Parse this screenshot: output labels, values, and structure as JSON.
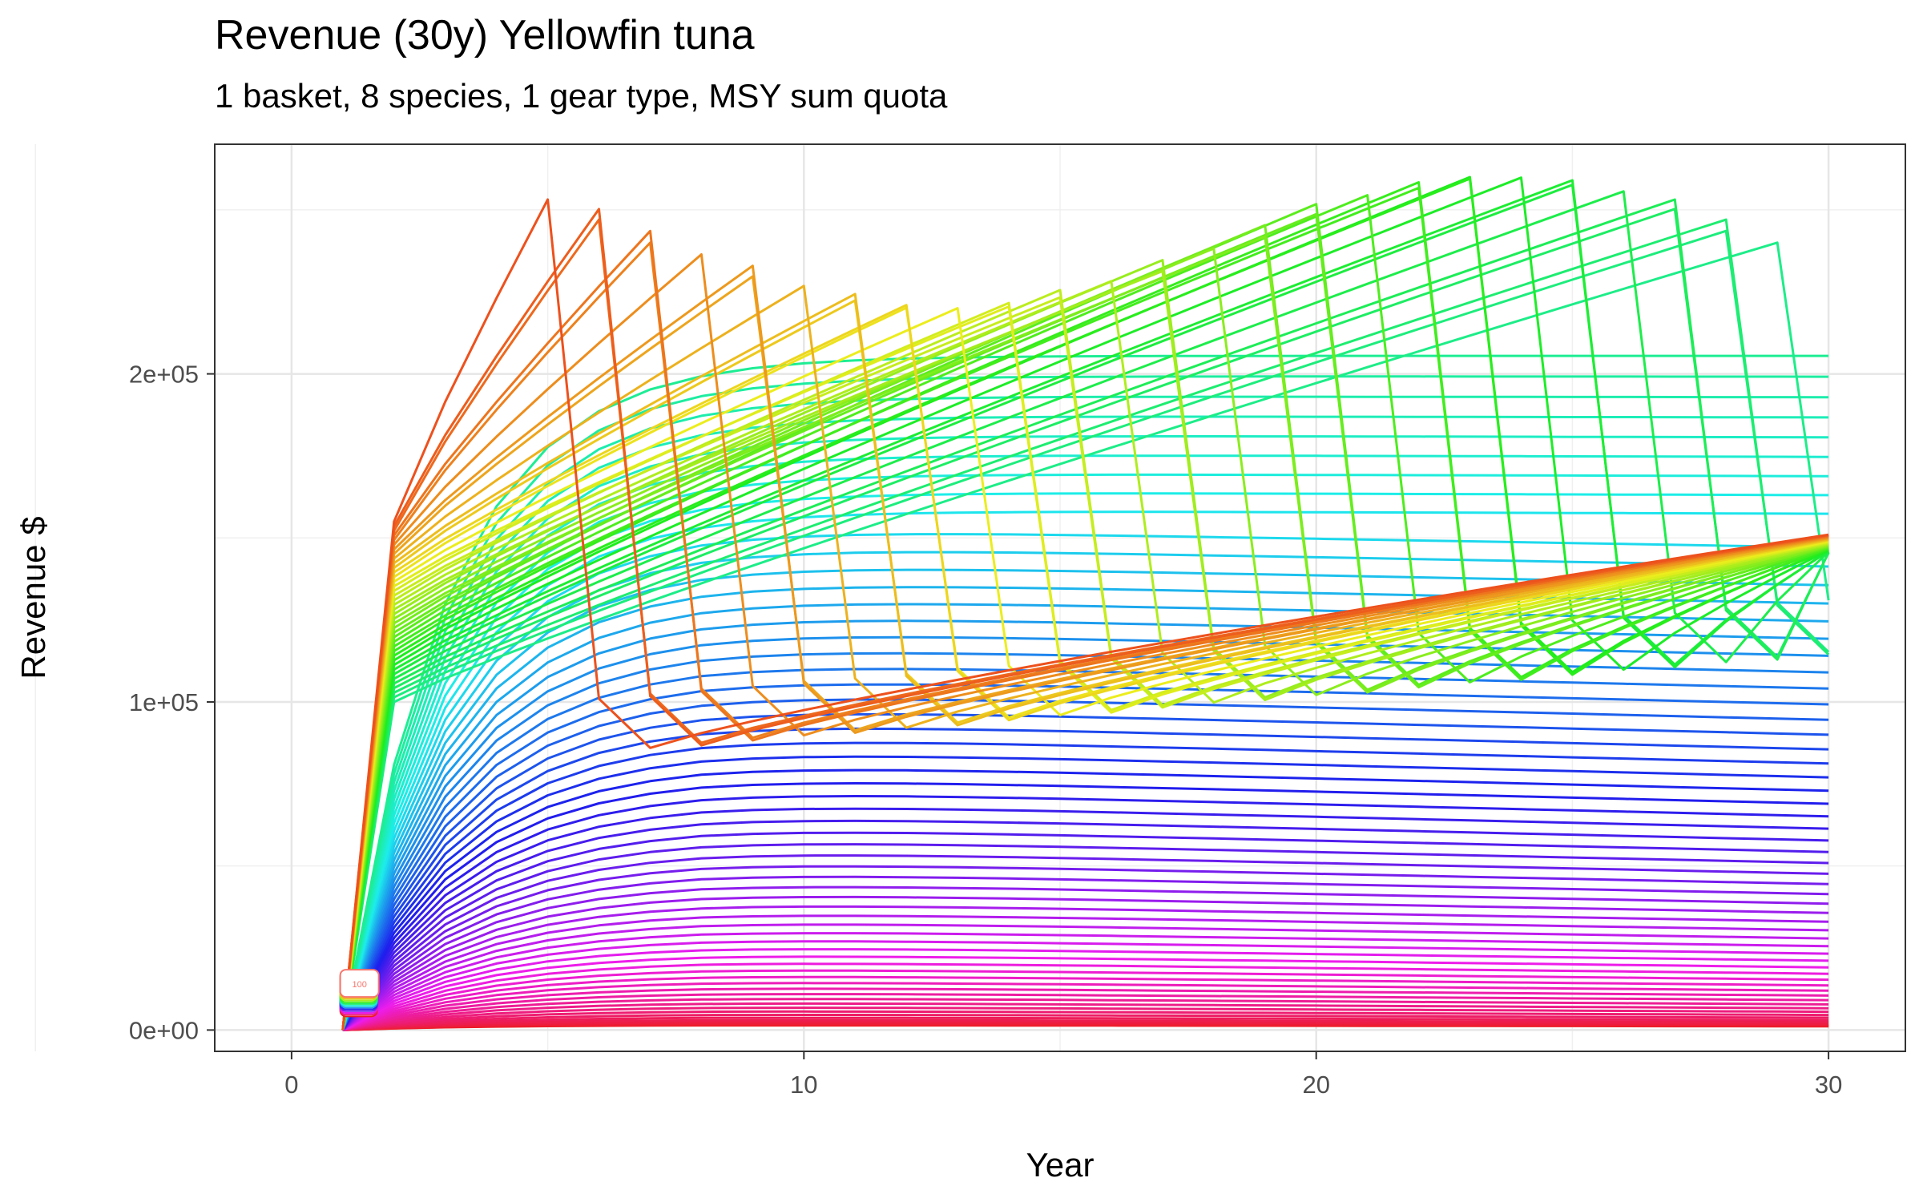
{
  "chart_data": {
    "type": "line",
    "title": "Revenue (30y) Yellowfin tuna",
    "subtitle": "1 basket, 8 species, 1 gear type, MSY sum quota",
    "xlabel": "Year",
    "ylabel": "Revenue $",
    "xlim": [
      -1.5,
      31.5
    ],
    "ylim": [
      -6500,
      270000
    ],
    "x_ticks": [
      0,
      10,
      20,
      30
    ],
    "x_tick_labels": [
      "0",
      "10",
      "20",
      "30"
    ],
    "y_ticks": [
      0,
      100000,
      200000
    ],
    "y_tick_labels": [
      "0e+00",
      "1e+05",
      "2e+05"
    ],
    "grid": true,
    "legend": "none",
    "n_series": 100,
    "x": [
      1,
      2,
      3,
      4,
      5,
      6,
      7,
      8,
      9,
      10,
      11,
      12,
      13,
      14,
      15,
      16,
      17,
      18,
      19,
      20,
      21,
      22,
      23,
      24,
      25,
      26,
      27,
      28,
      29,
      30
    ],
    "end_label": "100",
    "representative_series": [
      {
        "peak_year": 29,
        "peak_value": 262000,
        "final_value": 166000
      },
      {
        "peak_year": 22,
        "peak_value": 253000,
        "final_value": 120000
      },
      {
        "peak_year": 19,
        "peak_value": 254000,
        "final_value": 135000
      },
      {
        "peak_year": 17,
        "peak_value": 255000,
        "final_value": 138000
      },
      {
        "peak_year": 15,
        "peak_value": 249000,
        "final_value": 142000
      },
      {
        "peak_year": 13,
        "peak_value": 249000,
        "final_value": 145000
      },
      {
        "peak_year": 11,
        "peak_value": 240000,
        "final_value": 147000
      },
      {
        "peak_year": 9,
        "peak_value": 242000,
        "final_value": 148000
      },
      {
        "peak_year": 7,
        "peak_value": 241000,
        "final_value": 149000
      },
      {
        "peak_year": 5,
        "peak_value": 255000,
        "final_value": 150000
      },
      {
        "type": "plateau",
        "plateau_value": 204000,
        "final_value": 204000
      },
      {
        "type": "plateau",
        "plateau_value": 180000,
        "final_value": 175000
      },
      {
        "type": "plateau",
        "plateau_value": 150000,
        "final_value": 120000
      },
      {
        "type": "plateau",
        "plateau_value": 80000,
        "final_value": 72000
      },
      {
        "type": "plateau",
        "plateau_value": 25000,
        "final_value": 22000
      },
      {
        "type": "plateau",
        "plateau_value": 9000,
        "final_value": 5000
      }
    ]
  }
}
